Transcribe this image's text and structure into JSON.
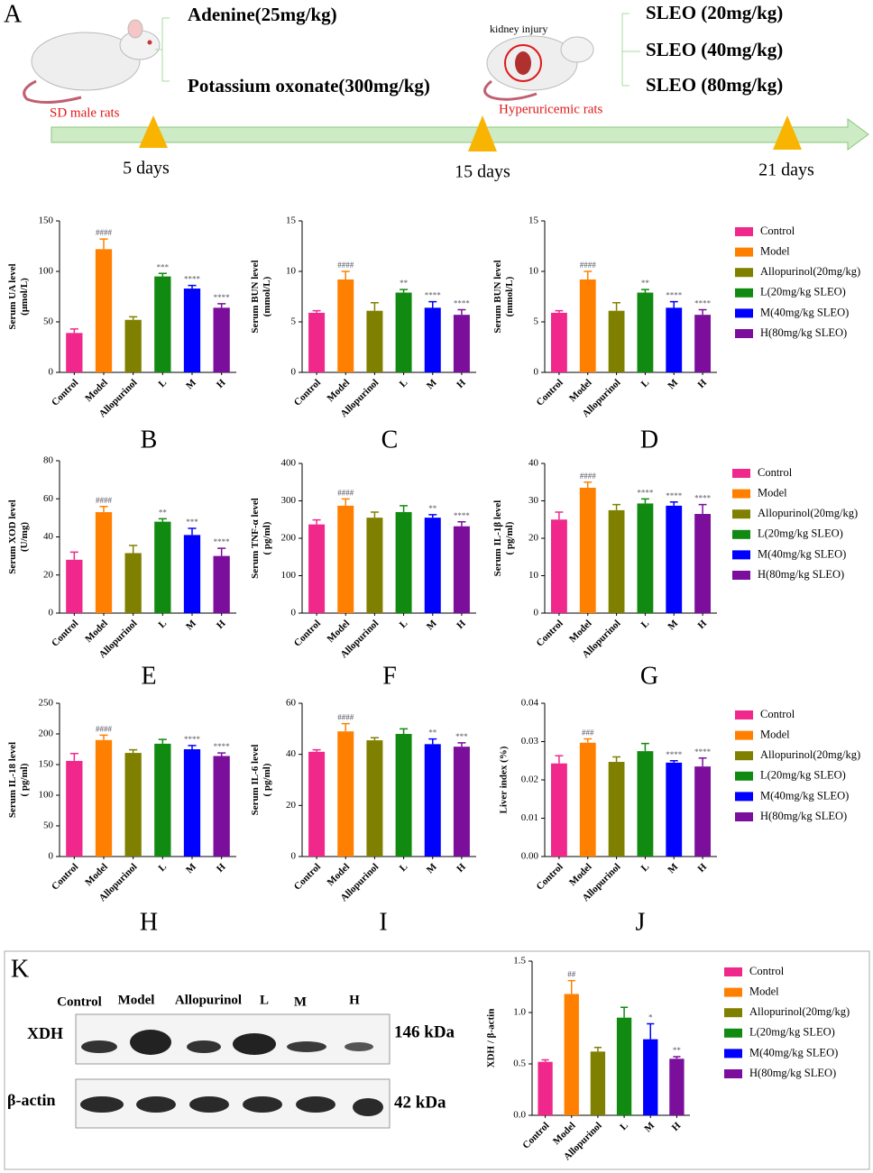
{
  "panel_a": {
    "label": "A",
    "treatments": [
      "Adenine(25mg/kg)",
      "Potassium oxonate(300mg/kg)"
    ],
    "start_group": "SD male rats",
    "injury": "kidney injury",
    "model_group": "Hyperuricemic rats",
    "doses": [
      "SLEO (20mg/kg)",
      "SLEO (40mg/kg)",
      "SLEO (80mg/kg)"
    ],
    "timepoints": [
      "5 days",
      "15 days",
      "21 days"
    ]
  },
  "panel_k": {
    "label": "K",
    "lanes": [
      "Control",
      "Model",
      "Allopurinol",
      "L",
      "M",
      "H"
    ],
    "rows": [
      {
        "name": "XDH",
        "size": "146 kDa"
      },
      {
        "name": "β-actin",
        "size": "42 kDa"
      }
    ]
  },
  "chart_data": [
    {
      "type": "bar",
      "panel": "B",
      "ylabel": [
        "Serum UA level",
        "(μmol/L)"
      ],
      "categories": [
        "Control",
        "Model",
        "Allopurinol",
        "L",
        "M",
        "H"
      ],
      "values": [
        39,
        122,
        52,
        95,
        83,
        64
      ],
      "errors": [
        4,
        10,
        3,
        3,
        3,
        4
      ],
      "annotations": [
        null,
        "####",
        null,
        "***",
        "****",
        "****"
      ],
      "colors": [
        "#f0288c",
        "#ff8000",
        "#808000",
        "#118a11",
        "#0000ff",
        "#7b0f9c"
      ],
      "ylim": [
        0,
        150
      ],
      "yticks": [
        0,
        50,
        100,
        150
      ]
    },
    {
      "type": "bar",
      "panel": "C",
      "ylabel": [
        "Serum BUN level",
        "(mmol/L)"
      ],
      "categories": [
        "Control",
        "Model",
        "Allopurinol",
        "L",
        "M",
        "H"
      ],
      "values": [
        5.9,
        9.2,
        6.1,
        7.9,
        6.4,
        5.7
      ],
      "errors": [
        0.2,
        0.8,
        0.8,
        0.3,
        0.6,
        0.5
      ],
      "annotations": [
        null,
        "####",
        null,
        "**",
        "****",
        "****"
      ],
      "colors": [
        "#f0288c",
        "#ff8000",
        "#808000",
        "#118a11",
        "#0000ff",
        "#7b0f9c"
      ],
      "ylim": [
        0,
        15
      ],
      "yticks": [
        0,
        5,
        10,
        15
      ]
    },
    {
      "type": "bar",
      "panel": "D",
      "ylabel": [
        "Serum BUN level",
        "(mmol/L)"
      ],
      "categories": [
        "Control",
        "Model",
        "Allopurinol",
        "L",
        "M",
        "H"
      ],
      "values": [
        5.9,
        9.2,
        6.1,
        7.9,
        6.4,
        5.7
      ],
      "errors": [
        0.2,
        0.8,
        0.8,
        0.3,
        0.6,
        0.5
      ],
      "annotations": [
        null,
        "####",
        null,
        "**",
        "****",
        "****"
      ],
      "colors": [
        "#f0288c",
        "#ff8000",
        "#808000",
        "#118a11",
        "#0000ff",
        "#7b0f9c"
      ],
      "ylim": [
        0,
        15
      ],
      "yticks": [
        0,
        5,
        10,
        15
      ],
      "legend": [
        "Control",
        "Model",
        "Allopurinol(20mg/kg)",
        "L(20mg/kg SLEO)",
        "M(40mg/kg SLEO)",
        "H(80mg/kg SLEO)"
      ]
    },
    {
      "type": "bar",
      "panel": "E",
      "ylabel": [
        "Serum XOD level",
        "(U/mg)"
      ],
      "categories": [
        "Control",
        "Model",
        "Allopurinol",
        "L",
        "M",
        "H"
      ],
      "values": [
        28,
        53,
        31.5,
        48,
        41,
        30
      ],
      "errors": [
        4,
        3,
        4,
        1.5,
        3.5,
        4
      ],
      "annotations": [
        null,
        "####",
        null,
        "**",
        "***",
        "****"
      ],
      "colors": [
        "#f0288c",
        "#ff8000",
        "#808000",
        "#118a11",
        "#0000ff",
        "#7b0f9c"
      ],
      "ylim": [
        0,
        80
      ],
      "yticks": [
        0,
        20,
        40,
        60,
        80
      ]
    },
    {
      "type": "bar",
      "panel": "F",
      "ylabel": [
        "Serum TNF-α level",
        "( pg/ml)"
      ],
      "categories": [
        "Control",
        "Model",
        "Allopurinol",
        "L",
        "M",
        "H"
      ],
      "values": [
        237,
        287,
        255,
        270,
        255,
        232
      ],
      "errors": [
        12,
        18,
        15,
        17,
        8,
        12
      ],
      "annotations": [
        null,
        "####",
        null,
        null,
        "**",
        "****"
      ],
      "colors": [
        "#f0288c",
        "#ff8000",
        "#808000",
        "#118a11",
        "#0000ff",
        "#7b0f9c"
      ],
      "ylim": [
        0,
        400
      ],
      "yticks": [
        0,
        100,
        200,
        300,
        400
      ]
    },
    {
      "type": "bar",
      "panel": "G",
      "ylabel": [
        "Serum IL-1β level",
        "( pg/ml)"
      ],
      "categories": [
        "Control",
        "Model",
        "Allopurinol",
        "L",
        "M",
        "H"
      ],
      "values": [
        25,
        33.5,
        27.5,
        29.3,
        28.7,
        26.5
      ],
      "errors": [
        2,
        1.5,
        1.5,
        1.2,
        1,
        2.5
      ],
      "annotations": [
        null,
        "####",
        null,
        "****",
        "****",
        "****"
      ],
      "colors": [
        "#f0288c",
        "#ff8000",
        "#808000",
        "#118a11",
        "#0000ff",
        "#7b0f9c"
      ],
      "ylim": [
        0,
        40
      ],
      "yticks": [
        0,
        10,
        20,
        30,
        40
      ],
      "legend": [
        "Control",
        "Model",
        "Allopurinol(20mg/kg)",
        "L(20mg/kg SLEO)",
        "M(40mg/kg SLEO)",
        "H(80mg/kg SLEO)"
      ]
    },
    {
      "type": "bar",
      "panel": "H",
      "ylabel": [
        "Serum IL-18 level",
        "( pg/ml)"
      ],
      "categories": [
        "Control",
        "Model",
        "Allopurinol",
        "L",
        "M",
        "H"
      ],
      "values": [
        156,
        190,
        169,
        184,
        175,
        164
      ],
      "errors": [
        12,
        8,
        5,
        7,
        6,
        5
      ],
      "annotations": [
        null,
        "####",
        null,
        null,
        "****",
        "****"
      ],
      "colors": [
        "#f0288c",
        "#ff8000",
        "#808000",
        "#118a11",
        "#0000ff",
        "#7b0f9c"
      ],
      "ylim": [
        0,
        250
      ],
      "yticks": [
        0,
        50,
        100,
        150,
        200,
        250
      ]
    },
    {
      "type": "bar",
      "panel": "I",
      "ylabel": [
        "Serum IL-6 level",
        "( pg/ml)"
      ],
      "categories": [
        "Control",
        "Model",
        "Allopurinol",
        "L",
        "M",
        "H"
      ],
      "values": [
        41,
        49,
        45.5,
        48,
        44,
        43
      ],
      "errors": [
        0.8,
        3,
        1,
        2,
        2,
        1.5
      ],
      "annotations": [
        null,
        "####",
        null,
        null,
        "**",
        "***"
      ],
      "colors": [
        "#f0288c",
        "#ff8000",
        "#808000",
        "#118a11",
        "#0000ff",
        "#7b0f9c"
      ],
      "ylim": [
        0,
        60
      ],
      "yticks": [
        0,
        20,
        40,
        60
      ]
    },
    {
      "type": "bar",
      "panel": "J",
      "ylabel": [
        "Liver index (%)"
      ],
      "categories": [
        "Control",
        "Model",
        "Allopurinol",
        "L",
        "M",
        "H"
      ],
      "values": [
        0.0243,
        0.0297,
        0.0247,
        0.0275,
        0.0245,
        0.0235
      ],
      "errors": [
        0.002,
        0.001,
        0.0013,
        0.002,
        0.0005,
        0.0022
      ],
      "annotations": [
        null,
        "###",
        null,
        null,
        "****",
        "****"
      ],
      "colors": [
        "#f0288c",
        "#ff8000",
        "#808000",
        "#118a11",
        "#0000ff",
        "#7b0f9c"
      ],
      "ylim": [
        0,
        0.04
      ],
      "yticks": [
        {
          "value": 0,
          "label": "0.00"
        },
        0.01,
        0.02,
        0.03,
        0.04
      ],
      "legend": [
        "Control",
        "Model",
        "Allopurinol(20mg/kg)",
        "L(20mg/kg SLEO)",
        "M(40mg/kg SLEO)",
        "H(80mg/kg SLEO)"
      ]
    },
    {
      "type": "bar",
      "ylabel": [
        "XDH / β-actin"
      ],
      "categories": [
        "Control",
        "Model",
        "Allopurinol",
        "L",
        "M",
        "H"
      ],
      "values": [
        0.52,
        1.18,
        0.62,
        0.95,
        0.74,
        0.55
      ],
      "errors": [
        0.02,
        0.13,
        0.04,
        0.1,
        0.15,
        0.02
      ],
      "annotations": [
        null,
        "##",
        null,
        null,
        "*",
        "**"
      ],
      "colors": [
        "#f0288c",
        "#ff8000",
        "#808000",
        "#118a11",
        "#0000ff",
        "#7b0f9c"
      ],
      "ylim": [
        0,
        1.5
      ],
      "yticks": [
        {
          "value": 0,
          "label": "0.0"
        },
        0.5,
        {
          "value": 1,
          "label": "1.0"
        },
        1.5
      ],
      "legend": [
        "Control",
        "Model",
        "Allopurinol(20mg/kg)",
        "L(20mg/kg SLEO)",
        "M(40mg/kg SLEO)",
        "H(80mg/kg SLEO)"
      ]
    }
  ]
}
